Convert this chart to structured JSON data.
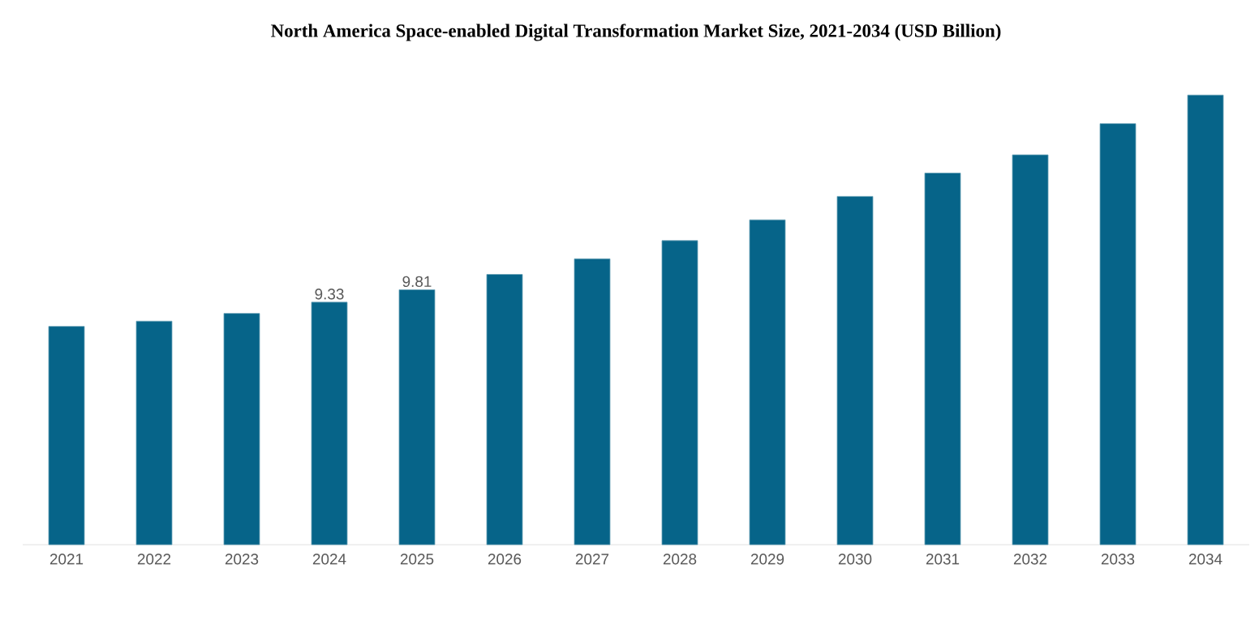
{
  "chart_data": {
    "type": "bar",
    "title": "North America Space-enabled Digital Transformation Market Size, 2021-2034 (USD Billion)",
    "categories": [
      "2021",
      "2022",
      "2023",
      "2024",
      "2025",
      "2026",
      "2027",
      "2028",
      "2029",
      "2030",
      "2031",
      "2032",
      "2033",
      "2034"
    ],
    "values": [
      8.4,
      8.6,
      8.9,
      9.33,
      9.81,
      10.4,
      11.0,
      11.7,
      12.5,
      13.4,
      14.3,
      15.0,
      16.2,
      17.3
    ],
    "value_labels": [
      null,
      null,
      null,
      "9.33",
      "9.81",
      null,
      null,
      null,
      null,
      null,
      null,
      null,
      null,
      null
    ],
    "color": "#066489"
  }
}
